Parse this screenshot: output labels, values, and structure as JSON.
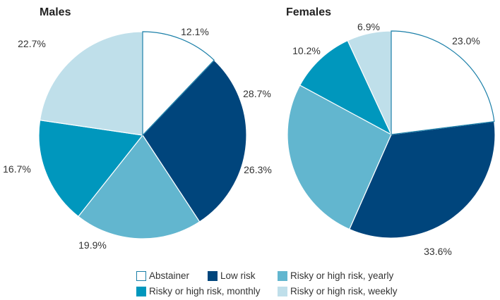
{
  "chart_data": [
    {
      "type": "pie",
      "title": "Males",
      "categories": [
        "Abstainer",
        "Low risk",
        "Risky or high risk, yearly",
        "Risky or high risk, monthly",
        "Risky or high risk, weekly"
      ],
      "values": [
        12.1,
        28.7,
        19.9,
        16.7,
        22.7
      ],
      "labels": [
        "12.1%",
        "28.7%",
        "19.9%",
        "16.7%",
        "22.7%"
      ]
    },
    {
      "type": "pie",
      "title": "Females",
      "categories": [
        "Abstainer",
        "Low risk",
        "Risky or high risk, yearly",
        "Risky or high risk, monthly",
        "Risky or high risk, weekly"
      ],
      "values": [
        23.0,
        33.6,
        26.3,
        10.2,
        6.9
      ],
      "labels": [
        "23.0%",
        "33.6%",
        "26.3%",
        "10.2%",
        "6.9%"
      ]
    }
  ],
  "legend": [
    {
      "label": "Abstainer",
      "color": "#ffffff",
      "border": "#1a7fa8"
    },
    {
      "label": "Low risk",
      "color": "#00457c",
      "border": "#00457c"
    },
    {
      "label": "Risky or high risk, yearly",
      "color": "#62b6cf",
      "border": "#62b6cf"
    },
    {
      "label": "Risky or high risk, monthly",
      "color": "#0097bd",
      "border": "#0097bd"
    },
    {
      "label": "Risky or high risk, weekly",
      "color": "#bfdfea",
      "border": "#bfdfea"
    }
  ],
  "colors": {
    "outline": "#1a7fa8",
    "slice_edge": "#ffffff"
  }
}
